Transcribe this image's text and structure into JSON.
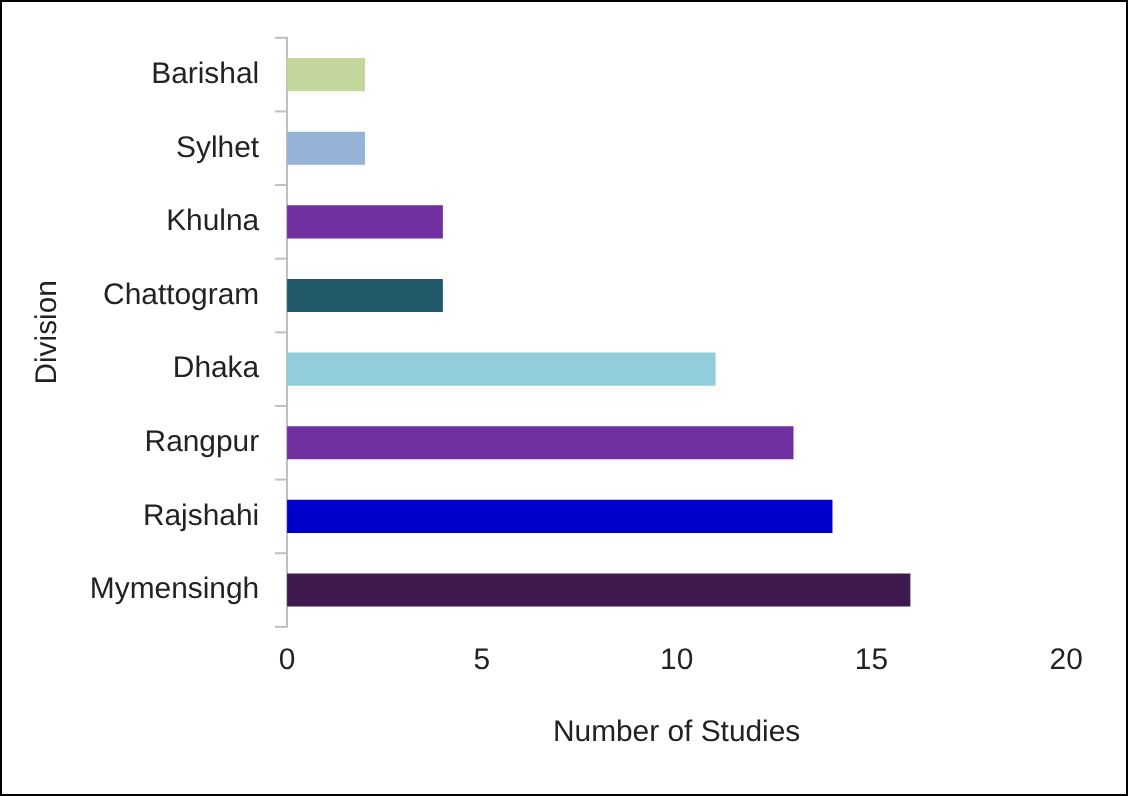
{
  "chart_data": {
    "type": "bar",
    "orientation": "horizontal",
    "xlabel": "Number of Studies",
    "ylabel": "Division",
    "categories": [
      "Barishal",
      "Sylhet",
      "Khulna",
      "Chattogram",
      "Dhaka",
      "Rangpur",
      "Rajshahi",
      "Mymensingh"
    ],
    "values": [
      2,
      2,
      4,
      4,
      11,
      13,
      14,
      16
    ],
    "colors": [
      "#c3d69b",
      "#95b3d7",
      "#7030a0",
      "#215968",
      "#92cddc",
      "#7030a0",
      "#0000cc",
      "#3f1a4e"
    ],
    "xlim": [
      0,
      20
    ],
    "xticks": [
      0,
      5,
      10,
      15,
      20
    ],
    "grid": false,
    "legend": false
  }
}
